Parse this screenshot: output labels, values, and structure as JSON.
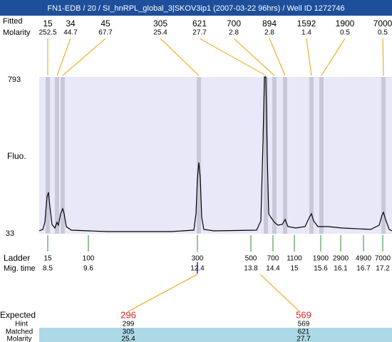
{
  "header": {
    "title": "FN1-EDB / 20 / SI_hnRPL_global_3|SKOV3ip1 (2007-03-22 96hrs) / Well ID 1272746"
  },
  "peaks": {
    "size_label": "Fitted",
    "molarity_label": "Molarity",
    "sizes": [
      "15",
      "34",
      "45",
      "305",
      "621",
      "700",
      "894",
      "1592",
      "1900",
      "7000"
    ],
    "molarity": [
      "252.5",
      "44.7",
      "67.7",
      "25.4",
      "27.7",
      "2.8",
      "2.8",
      "1.4",
      "0.5",
      "0.5"
    ]
  },
  "plot": {
    "y_top": "793",
    "y_bottom": "33",
    "y_label": "Fluo."
  },
  "ladder": {
    "label": "Ladder",
    "mig_label": "Mig. time",
    "sizes": [
      "15",
      "100",
      "300",
      "500",
      "700",
      "1100",
      "1900",
      "2900",
      "4900",
      "7000"
    ],
    "mig_times": [
      "8.5",
      "9.6",
      "12.4",
      "13.8",
      "14.4",
      "15",
      "15.6",
      "16.1",
      "16.7",
      "17.2"
    ]
  },
  "results": {
    "expected_label": "Expected",
    "hint_label": "Hint",
    "matched_label": "Matched",
    "molarity_label": "Molarity",
    "columns": [
      {
        "expected": "296",
        "hint": "299",
        "matched": "305",
        "molarity": "25.4"
      },
      {
        "expected": "569",
        "hint": "569",
        "matched": "621",
        "molarity": "27.7"
      }
    ]
  }
}
